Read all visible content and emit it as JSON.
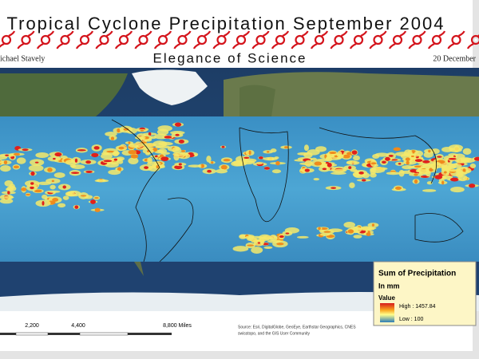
{
  "header": {
    "title": "Tropical Cyclone Precipitation September 2004",
    "author": "ichael Stavely",
    "subtitle": "Elegance of Science",
    "date": "20 December"
  },
  "legend": {
    "title": "Sum of Precipitation",
    "unit": "In mm",
    "field": "Value",
    "high": "High : 1457.84",
    "low": "Low : 100"
  },
  "scale_bar": {
    "ticks": [
      "2,200",
      "4,400",
      "8,800 Miles"
    ]
  },
  "source": {
    "lines": [
      "Source: Esri, DigitalGlobe, GeoEye, Earthstar Geographics, CNES",
      "swisstopo, and the GIS User Community"
    ]
  }
}
